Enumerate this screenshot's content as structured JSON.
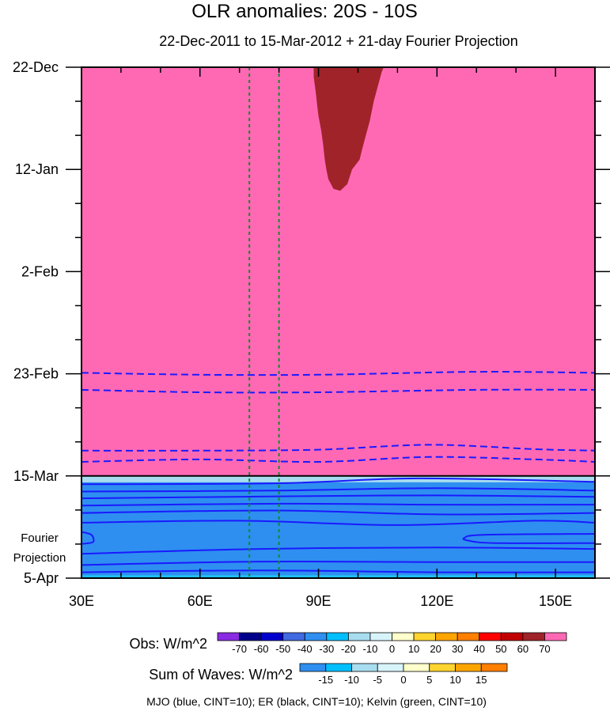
{
  "chart_data": {
    "type": "heatmap",
    "title": "OLR anomalies: 20S - 10S",
    "subtitle": "22-Dec-2011 to 15-Mar-2012 + 21-day Fourier Projection",
    "xlim": [
      30,
      160
    ],
    "x_ticks": [
      {
        "value": 30,
        "label": "30E"
      },
      {
        "value": 60,
        "label": "60E"
      },
      {
        "value": 90,
        "label": "90E"
      },
      {
        "value": 120,
        "label": "120E"
      },
      {
        "value": 150,
        "label": "150E"
      }
    ],
    "y_ticks": [
      {
        "day": 0,
        "label": "22-Dec"
      },
      {
        "day": 21,
        "label": "12-Jan"
      },
      {
        "day": 42,
        "label": "2-Feb"
      },
      {
        "day": 63,
        "label": "23-Feb"
      },
      {
        "day": 84,
        "label": "15-Mar"
      },
      {
        "day": 105,
        "label": "5-Apr"
      }
    ],
    "ylim_days": [
      0,
      105
    ],
    "projection_label_line1": "Fourier",
    "projection_label_line2": "Projection",
    "obs_background_color": "#ff69b4",
    "projection_background_color": "#2e8ff0",
    "obs_max_blob": {
      "color": "#a0232a",
      "polygon": [
        [
          88.8,
          0
        ],
        [
          88.8,
          2
        ],
        [
          89.3,
          5
        ],
        [
          89.7,
          8
        ],
        [
          90,
          10
        ],
        [
          90.7,
          13
        ],
        [
          91.2,
          16
        ],
        [
          91.6,
          19
        ],
        [
          92,
          21
        ],
        [
          92.5,
          23
        ],
        [
          93.8,
          25
        ],
        [
          95.5,
          25.4
        ],
        [
          97.3,
          24
        ],
        [
          98.5,
          21
        ],
        [
          100.4,
          19
        ],
        [
          101,
          17
        ],
        [
          102,
          14
        ],
        [
          103,
          11
        ],
        [
          104,
          7
        ],
        [
          105,
          4
        ],
        [
          106,
          1
        ],
        [
          106.5,
          0
        ]
      ]
    },
    "mjo_contours_obs": [
      {
        "points": [
          [
            30,
            62.8
          ],
          [
            60,
            63.2
          ],
          [
            90,
            63.2
          ],
          [
            130,
            62.6
          ],
          [
            160,
            62.8
          ]
        ]
      },
      {
        "points": [
          [
            30,
            66.3
          ],
          [
            60,
            66.8
          ],
          [
            90,
            66.8
          ],
          [
            130,
            66.3
          ],
          [
            160,
            66.3
          ]
        ]
      },
      {
        "points": [
          [
            30,
            78.8
          ],
          [
            60,
            78.8
          ],
          [
            90,
            78.6
          ],
          [
            118,
            77.6
          ],
          [
            145,
            78.5
          ],
          [
            160,
            78.8
          ]
        ]
      },
      {
        "points": [
          [
            30,
            81.1
          ],
          [
            60,
            80.6
          ],
          [
            90,
            81.1
          ],
          [
            118,
            80.1
          ],
          [
            145,
            80.6
          ],
          [
            160,
            81.1
          ]
        ]
      }
    ],
    "green_contours": [
      {
        "lon": 72.5
      },
      {
        "lon": 80
      }
    ],
    "projection_contours": [
      {
        "points": [
          [
            30,
            85.7
          ],
          [
            80,
            85.5
          ],
          [
            115,
            84.5
          ],
          [
            160,
            85.2
          ]
        ]
      },
      {
        "points": [
          [
            30,
            87.2
          ],
          [
            80,
            87
          ],
          [
            120,
            86.5
          ],
          [
            160,
            87
          ]
        ]
      },
      {
        "points": [
          [
            30,
            88.6
          ],
          [
            80,
            88.2
          ],
          [
            120,
            88
          ],
          [
            160,
            88.3
          ]
        ]
      },
      {
        "points": [
          [
            30,
            90.1
          ],
          [
            80,
            89.7
          ],
          [
            120,
            89.9
          ],
          [
            160,
            89.9
          ]
        ]
      },
      {
        "points": [
          [
            30,
            91.6
          ],
          [
            80,
            91.1
          ],
          [
            120,
            91.9
          ],
          [
            160,
            91.6
          ]
        ]
      },
      {
        "points": [
          [
            30,
            93.6
          ],
          [
            70,
            93.2
          ],
          [
            110,
            94.1
          ],
          [
            145,
            93.2
          ],
          [
            160,
            93.6
          ]
        ]
      },
      {
        "points": [
          [
            30,
            100
          ],
          [
            75,
            99
          ],
          [
            120,
            98.7
          ],
          [
            160,
            99
          ]
        ]
      },
      {
        "points": [
          [
            30,
            102.3
          ],
          [
            75,
            101.6
          ],
          [
            120,
            101.7
          ],
          [
            160,
            101.7
          ]
        ]
      },
      {
        "points": [
          [
            30,
            103.8
          ],
          [
            75,
            103.4
          ],
          [
            120,
            103.8
          ],
          [
            160,
            103.8
          ]
        ]
      }
    ],
    "projection_closed_contours": [
      {
        "points": [
          [
            30,
            95.5
          ],
          [
            32.5,
            96.1
          ],
          [
            33,
            97.5
          ],
          [
            31,
            97.9
          ],
          [
            30,
            97.9
          ]
        ]
      },
      {
        "points": [
          [
            160,
            95.9
          ],
          [
            132,
            96.1
          ],
          [
            127,
            96.7
          ],
          [
            128,
            97.3
          ],
          [
            135,
            97.8
          ],
          [
            160,
            97.8
          ]
        ]
      }
    ],
    "projection_top_band": {
      "day_from": 84,
      "day_to": 85.3,
      "color": "#a8ddf0"
    },
    "projection_bottom_band": {
      "day_from": 104.4,
      "day_to": 105,
      "color": "#1ec1f5"
    },
    "legend_obs": {
      "label": "Obs: W/m^2",
      "colors": [
        "#8a2be2",
        "#00008b",
        "#0000cd",
        "#4169e1",
        "#2e8ff0",
        "#00bfff",
        "#a8ddf0",
        "#d8f4fb",
        "#ffffcc",
        "#ffd42e",
        "#ffa500",
        "#ff7f00",
        "#ff0000",
        "#c00000",
        "#a0232a",
        "#ff69b4"
      ],
      "labels": [
        "-70",
        "-60",
        "-50",
        "-40",
        "-30",
        "-20",
        "-10",
        "0",
        "10",
        "20",
        "30",
        "40",
        "50",
        "60",
        "70"
      ]
    },
    "legend_waves": {
      "label": "Sum of Waves: W/m^2",
      "colors": [
        "#2e8ff0",
        "#00bfff",
        "#a8ddf0",
        "#d8f4fb",
        "#ffffcc",
        "#ffd42e",
        "#ffa500",
        "#ff7f00"
      ],
      "labels": [
        "-15",
        "-10",
        "-5",
        "0",
        "5",
        "10",
        "15"
      ]
    },
    "footer": "MJO (blue, CINT=10); ER (black, CINT=10); Kelvin (green, CINT=10)"
  }
}
